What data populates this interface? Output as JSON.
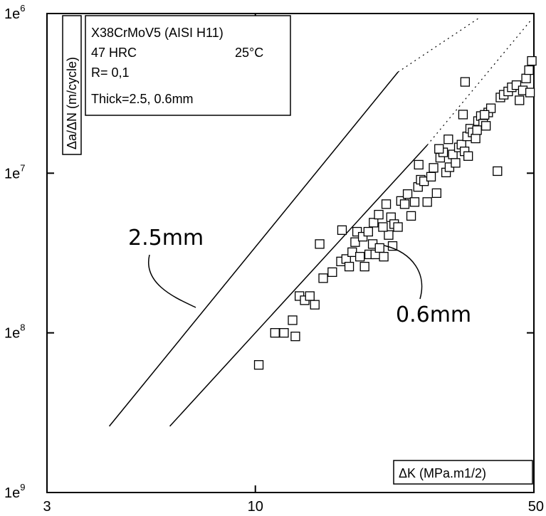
{
  "chart_data": {
    "type": "scatter",
    "title": "",
    "xlabel": "ΔK (MPa.m1/2)",
    "ylabel": "Δa/ΔN (m/cycle)",
    "xscale": "log",
    "yscale": "log",
    "xlim": [
      3,
      50
    ],
    "ylim": [
      1e-09,
      1e-06
    ],
    "grid": false,
    "x_ticks": [
      {
        "value": 3,
        "label": "3"
      },
      {
        "value": 10,
        "label": "10"
      },
      {
        "value": 50,
        "label": "50"
      }
    ],
    "y_ticks": [
      {
        "value": 1e-06,
        "base": "1e",
        "exp": "6"
      },
      {
        "value": 1e-07,
        "base": "1e",
        "exp": "7"
      },
      {
        "value": 1e-08,
        "base": "1e",
        "exp": "8"
      },
      {
        "value": 1e-09,
        "base": "1e",
        "exp": "9"
      }
    ],
    "legend": {
      "placement": "top-left",
      "lines": [
        "X38CrMoV5 (AISI H11)",
        "47 HRC",
        "25°C",
        "R= 0,1",
        "Thick=2.5, 0.6mm"
      ]
    },
    "series": [
      {
        "name": "2.5mm",
        "style": "solid-then-dotted line",
        "points": [
          [
            4.3,
            2.6e-09
          ],
          [
            22.8,
            4.3e-07
          ]
        ],
        "extension_points": [
          [
            22.8,
            4.3e-07
          ],
          [
            36.7,
            9.5e-07
          ]
        ]
      },
      {
        "name": "0.6mm",
        "style": "solid-then-dotted line",
        "points": [
          [
            6.1,
            2.6e-09
          ],
          [
            27.0,
            1.5e-07
          ]
        ],
        "extension_points": [
          [
            27.0,
            1.5e-07
          ],
          [
            49.0,
            9e-07
          ]
        ]
      },
      {
        "name": "data",
        "style": "open squares",
        "points": [
          [
            10.2,
            6.3e-09
          ],
          [
            11.2,
            1e-08
          ],
          [
            11.8,
            1e-08
          ],
          [
            12.4,
            1.2e-08
          ],
          [
            12.6,
            9.5e-09
          ],
          [
            12.9,
            1.7e-08
          ],
          [
            13.3,
            1.6e-08
          ],
          [
            13.7,
            1.7e-08
          ],
          [
            14.1,
            1.5e-08
          ],
          [
            14.8,
            2.2e-08
          ],
          [
            15.6,
            2.4e-08
          ],
          [
            14.5,
            3.6e-08
          ],
          [
            16.4,
            2.8e-08
          ],
          [
            16.9,
            2.9e-08
          ],
          [
            17.2,
            2.6e-08
          ],
          [
            17.5,
            3.2e-08
          ],
          [
            18.0,
            4.3e-08
          ],
          [
            18.3,
            3e-08
          ],
          [
            18.8,
            2.6e-08
          ],
          [
            19.3,
            3.1e-08
          ],
          [
            19.7,
            3.6e-08
          ],
          [
            20.0,
            3.1e-08
          ],
          [
            20.5,
            3.4e-08
          ],
          [
            21.0,
            3e-08
          ],
          [
            21.6,
            4.1e-08
          ],
          [
            22.1,
            3.5e-08
          ],
          [
            16.5,
            4.4e-08
          ],
          [
            17.8,
            3.7e-08
          ],
          [
            18.6,
            4e-08
          ],
          [
            19.2,
            4.3e-08
          ],
          [
            19.8,
            4.9e-08
          ],
          [
            20.4,
            5.5e-08
          ],
          [
            20.9,
            4.6e-08
          ],
          [
            21.3,
            6.4e-08
          ],
          [
            21.9,
            5.3e-08
          ],
          [
            22.3,
            4.8e-08
          ],
          [
            22.8,
            4.6e-08
          ],
          [
            23.2,
            6.7e-08
          ],
          [
            23.7,
            6.4e-08
          ],
          [
            24.1,
            7.4e-08
          ],
          [
            24.6,
            5.4e-08
          ],
          [
            25.1,
            6.6e-08
          ],
          [
            25.6,
            8.2e-08
          ],
          [
            26.0,
            9.1e-08
          ],
          [
            26.5,
            8.9e-08
          ],
          [
            27.0,
            6.6e-08
          ],
          [
            27.6,
            9.5e-08
          ],
          [
            28.0,
            1.08e-07
          ],
          [
            28.5,
            7.5e-08
          ],
          [
            29.1,
            1.25e-07
          ],
          [
            29.6,
            1.35e-07
          ],
          [
            30.1,
            1.01e-07
          ],
          [
            30.7,
            1.09e-07
          ],
          [
            31.3,
            1.31e-07
          ],
          [
            31.8,
            1.16e-07
          ],
          [
            32.4,
            1.45e-07
          ],
          [
            32.9,
            1.51e-07
          ],
          [
            33.5,
            1.37e-07
          ],
          [
            34.0,
            1.7e-07
          ],
          [
            34.6,
            1.9e-07
          ],
          [
            35.1,
            1.8e-07
          ],
          [
            35.7,
            1.65e-07
          ],
          [
            36.2,
            2.12e-07
          ],
          [
            36.8,
            2.28e-07
          ],
          [
            37.3,
            2.04e-07
          ],
          [
            37.9,
            1.98e-07
          ],
          [
            38.4,
            2.4e-07
          ],
          [
            39.0,
            2.55e-07
          ],
          [
            25.7,
            1.13e-07
          ],
          [
            28.9,
            1.42e-07
          ],
          [
            30.5,
            1.63e-07
          ],
          [
            33.2,
            2.33e-07
          ],
          [
            33.6,
            3.73e-07
          ],
          [
            34.2,
            1.28e-07
          ],
          [
            36.0,
            1.86e-07
          ],
          [
            37.6,
            2.32e-07
          ],
          [
            40.5,
            1.03e-07
          ],
          [
            41.2,
            2.98e-07
          ],
          [
            42.0,
            3.1e-07
          ],
          [
            43.1,
            3.25e-07
          ],
          [
            44.0,
            3.45e-07
          ],
          [
            45.2,
            3.56e-07
          ],
          [
            46.0,
            2.86e-07
          ],
          [
            46.9,
            3.3e-07
          ],
          [
            47.8,
            3.92e-07
          ],
          [
            48.6,
            4.42e-07
          ],
          [
            49.4,
            5.05e-07
          ],
          [
            48.9,
            3.2e-07
          ]
        ]
      }
    ],
    "annotations": [
      {
        "text": "2.5mm",
        "points_to": "2.5mm"
      },
      {
        "text": "0.6mm",
        "points_to": "0.6mm"
      }
    ]
  }
}
